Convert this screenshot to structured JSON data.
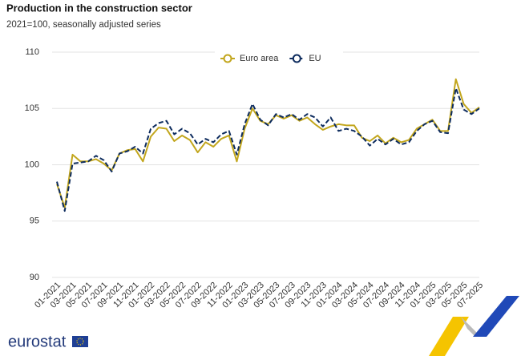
{
  "chart_data": {
    "type": "line",
    "title": "Production in the construction sector",
    "subtitle": "2021=100, seasonally adjusted series",
    "categories": [
      "01-2021",
      null,
      "03-2021",
      null,
      "05-2021",
      null,
      "07-2021",
      null,
      "09-2021",
      null,
      "11-2021",
      null,
      "01-2022",
      null,
      "03-2022",
      null,
      "05-2022",
      null,
      "07-2022",
      null,
      "09-2022",
      null,
      "11-2022",
      null,
      "01-2023",
      null,
      "03-2023",
      null,
      "05-2023",
      null,
      "07-2023",
      null,
      "09-2023",
      null,
      "11-2023",
      null,
      "01-2024",
      null,
      "03-2024",
      null,
      "05-2024",
      null,
      "07-2024",
      null,
      "09-2024",
      null,
      "11-2024",
      null,
      "01-2025",
      null,
      "03-2025",
      null,
      "05-2025",
      null,
      "07-2025"
    ],
    "series": [
      {
        "name": "Euro area",
        "color": "#c2a61d",
        "dash": false,
        "values": [
          98.3,
          96.2,
          100.9,
          100.3,
          100.3,
          100.5,
          100.1,
          99.5,
          101.0,
          101.3,
          101.4,
          100.3,
          102.5,
          103.3,
          103.2,
          102.1,
          102.6,
          102.2,
          101.1,
          102.0,
          101.6,
          102.3,
          102.6,
          100.3,
          103.2,
          105.0,
          103.9,
          103.6,
          104.4,
          104.1,
          104.4,
          103.9,
          104.2,
          103.6,
          103.1,
          103.4,
          103.6,
          103.5,
          103.5,
          102.4,
          102.1,
          102.6,
          101.9,
          102.4,
          102.0,
          102.2,
          103.2,
          103.6,
          104.0,
          103.0,
          103.0,
          107.6,
          105.4,
          104.6,
          105.1
        ]
      },
      {
        "name": "EU",
        "color": "#0e2c5e",
        "dash": true,
        "values": [
          98.5,
          95.9,
          100.1,
          100.2,
          100.3,
          100.8,
          100.4,
          99.4,
          101.0,
          101.2,
          101.6,
          101.0,
          103.2,
          103.7,
          103.9,
          102.7,
          103.2,
          102.8,
          101.8,
          102.3,
          102.0,
          102.7,
          103.0,
          100.9,
          103.6,
          105.4,
          104.0,
          103.5,
          104.5,
          104.2,
          104.5,
          104.0,
          104.5,
          104.2,
          103.4,
          104.2,
          103.0,
          103.2,
          103.0,
          102.5,
          101.7,
          102.3,
          101.8,
          102.3,
          101.8,
          102.0,
          103.0,
          103.6,
          103.9,
          102.9,
          102.8,
          106.8,
          104.9,
          104.5,
          105.0
        ]
      }
    ],
    "ylim": [
      90,
      110
    ],
    "yticks": [
      90,
      95,
      100,
      105,
      110
    ],
    "grid": true,
    "legend": "top"
  },
  "branding": {
    "logo": "eurostat"
  }
}
